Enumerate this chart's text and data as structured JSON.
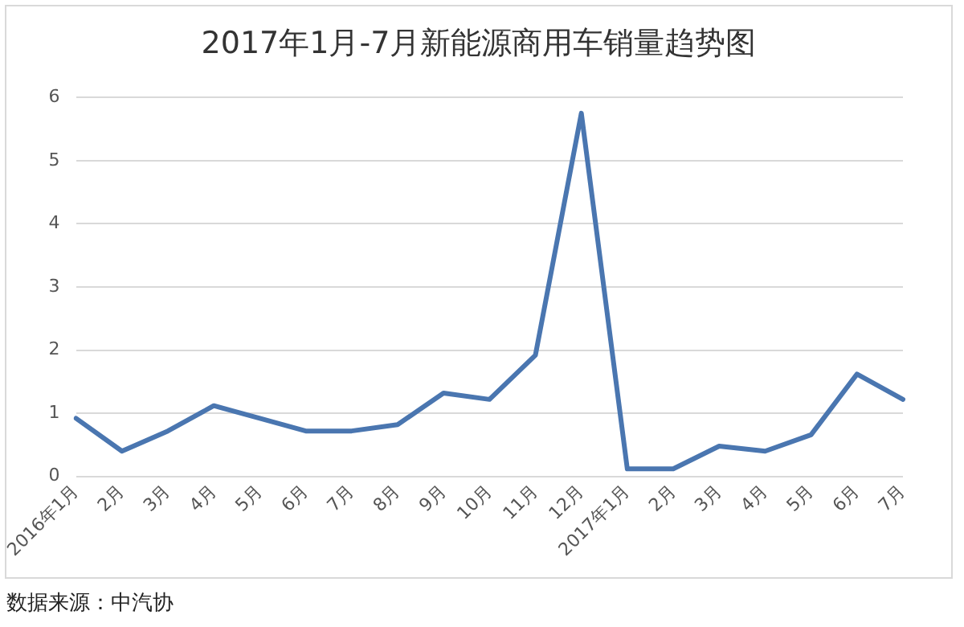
{
  "chart_data": {
    "type": "line",
    "title": "2017年1月-7月新能源商用车销量趋势图",
    "categories": [
      "2016年1月",
      "2月",
      "3月",
      "4月",
      "5月",
      "6月",
      "7月",
      "8月",
      "9月",
      "10月",
      "11月",
      "12月",
      "2017年1月",
      "2月",
      "3月",
      "4月",
      "5月",
      "6月",
      "7月"
    ],
    "series": [
      {
        "color": "#4a76b0",
        "values": [
          0.92,
          0.4,
          0.72,
          1.12,
          0.92,
          0.72,
          0.72,
          0.82,
          1.32,
          1.22,
          1.92,
          5.75,
          0.12,
          0.12,
          0.48,
          0.4,
          0.66,
          1.62,
          1.22
        ]
      }
    ],
    "ylim": [
      0,
      6
    ],
    "yticks": [
      0,
      1,
      2,
      3,
      4,
      5,
      6
    ],
    "grid": "y",
    "legend": false,
    "marker": "none",
    "line_style": "solid",
    "annotations": [
      "数据来源：中汽协"
    ]
  }
}
